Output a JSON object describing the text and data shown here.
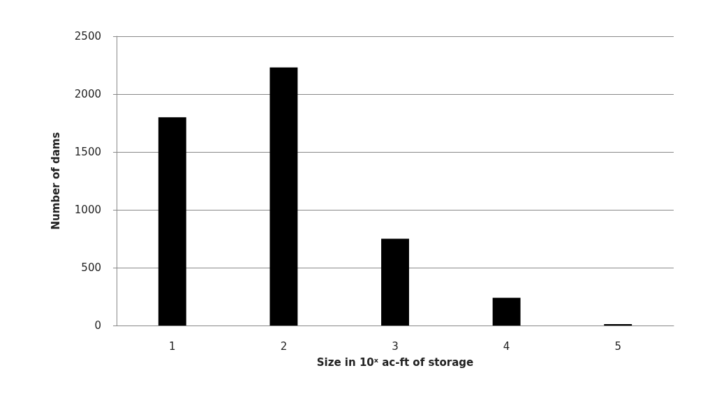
{
  "chart_data": {
    "type": "bar",
    "xlabel": "Size in 10ˣ ac-ft of storage",
    "ylabel": "Number of dams",
    "categories": [
      "1",
      "2",
      "3",
      "4",
      "5"
    ],
    "values": [
      1800,
      2230,
      750,
      240,
      12
    ],
    "color": "#000000",
    "ylim": [
      0,
      2500
    ],
    "yticks": [
      0,
      500,
      1000,
      1500,
      2000,
      2500
    ],
    "grid": "y"
  }
}
